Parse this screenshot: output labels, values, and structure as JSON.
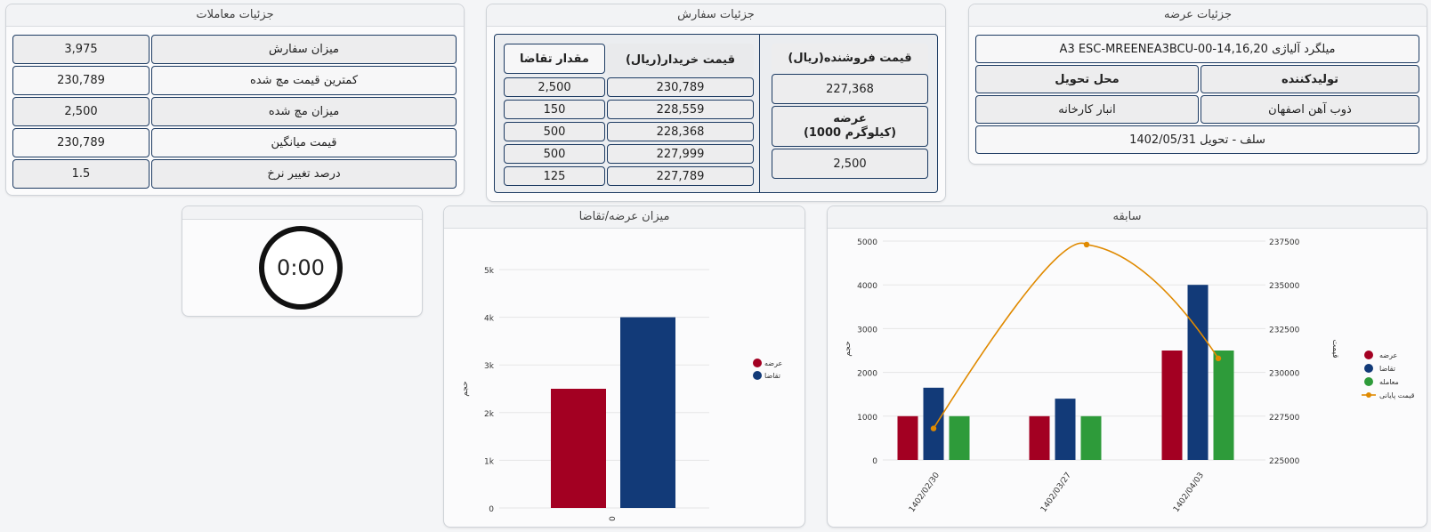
{
  "offer": {
    "title": "جزئیات عرضه",
    "product": "میلگرد آلیاژی A3 ESC-MREENEA3BCU-00-14,16,20",
    "producer_label": "تولیدکننده",
    "delivery_place_label": "محل تحویل",
    "producer": "ذوب آهن اصفهان",
    "delivery_place": "انبار کارخانه",
    "delivery": "سلف - تحویل 1402/05/31"
  },
  "order": {
    "title": "جزئیات سفارش",
    "seller_price_label": "قیمت فروشنده(ریال)",
    "seller_price": "227,368",
    "supply_label": "عرضه",
    "supply_unit": "(1000 کیلوگرم)",
    "supply_value": "2,500",
    "buyer_price_label": "قیمت خریدار(ریال)",
    "demand_qty_label": "مقدار تقاضا",
    "rows": [
      {
        "price": "230,789",
        "qty": "2,500"
      },
      {
        "price": "228,559",
        "qty": "150"
      },
      {
        "price": "228,368",
        "qty": "500"
      },
      {
        "price": "227,999",
        "qty": "500"
      },
      {
        "price": "227,789",
        "qty": "125"
      }
    ]
  },
  "trades": {
    "title": "جزئیات معاملات",
    "rows": [
      {
        "label": "میزان سفارش",
        "value": "3,975"
      },
      {
        "label": "کمترین قیمت مچ شده",
        "value": "230,789"
      },
      {
        "label": "میزان مچ شده",
        "value": "2,500"
      },
      {
        "label": "قیمت میانگین",
        "value": "230,789"
      },
      {
        "label": "درصد تغییر نرخ",
        "value": "1.5"
      }
    ]
  },
  "timer": {
    "value": "0:00"
  },
  "colors": {
    "supply": "#a30022",
    "demand": "#123a78",
    "trade": "#2e9b3a",
    "price": "#e08a00"
  },
  "chart_data": [
    {
      "type": "bar",
      "title": "میزان عرضه/تقاضا",
      "ylabel": "حجم",
      "categories": [
        "0"
      ],
      "series": [
        {
          "name": "عرضه",
          "values": [
            2500
          ]
        },
        {
          "name": "تقاضا",
          "values": [
            4000
          ]
        }
      ],
      "ylim": [
        0,
        5000
      ],
      "yticks": [
        "0",
        "1k",
        "2k",
        "3k",
        "4k",
        "5k"
      ],
      "legend": "right"
    },
    {
      "type": "bar",
      "title": "سابقه",
      "ylabel": "حجم",
      "ylabel_right": "قیمت",
      "categories": [
        "1402/02/30",
        "1402/03/27",
        "1402/04/03"
      ],
      "series": [
        {
          "name": "عرضه",
          "values": [
            1000,
            1000,
            2500
          ]
        },
        {
          "name": "تقاضا",
          "values": [
            1650,
            1400,
            4000
          ]
        },
        {
          "name": "معامله",
          "values": [
            1000,
            1000,
            2500
          ]
        },
        {
          "name": "قیمت پایانی",
          "type": "line",
          "axis": "right",
          "values": [
            226800,
            237300,
            230800
          ]
        }
      ],
      "ylim": [
        0,
        5000
      ],
      "ylim_right": [
        225000,
        237500
      ],
      "yticks": [
        "0",
        "1000",
        "2000",
        "3000",
        "4000",
        "5000"
      ],
      "yticks_right": [
        "225000",
        "227500",
        "230000",
        "232500",
        "235000",
        "237500"
      ],
      "legend": "right"
    }
  ]
}
